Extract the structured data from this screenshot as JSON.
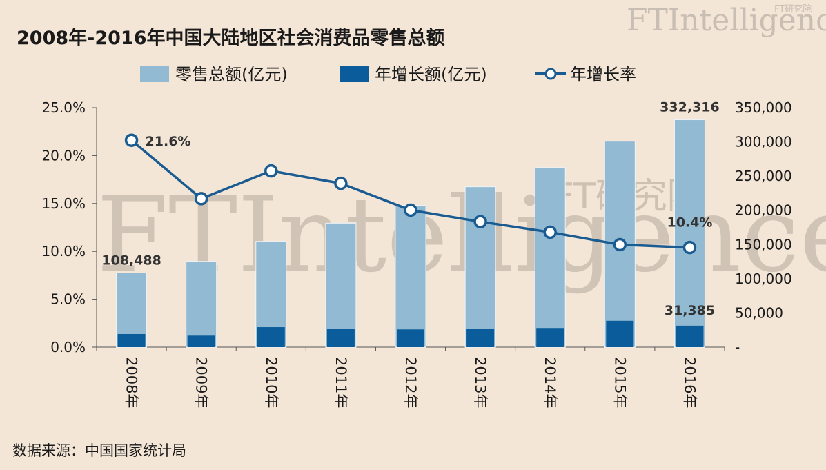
{
  "chart_data": {
    "type": "bar",
    "title": "2008年-2016年中国大陆地区社会消费品零售总额",
    "categories": [
      "2008年",
      "2009年",
      "2010年",
      "2011年",
      "2012年",
      "2013年",
      "2014年",
      "2015年",
      "2016年"
    ],
    "series": [
      {
        "name": "零售总额(亿元)",
        "type": "bar",
        "axis": "right",
        "color": "#92bad2",
        "values": [
          108488,
          125343,
          154554,
          181226,
          207167,
          234380,
          262394,
          300931,
          332316
        ]
      },
      {
        "name": "年增长额(亿元)",
        "type": "bar",
        "axis": "right",
        "color": "#0a5d9a",
        "values": [
          19178,
          16855,
          29211,
          26672,
          25941,
          27213,
          28014,
          38537,
          31385
        ]
      },
      {
        "name": "年增长率",
        "type": "line",
        "axis": "left",
        "color": "#1a5c91",
        "values": [
          21.6,
          15.5,
          18.4,
          17.1,
          14.3,
          13.1,
          12.0,
          10.7,
          10.4
        ]
      }
    ],
    "y_left": {
      "min": 0,
      "max": 25,
      "ticks": [
        "0.0%",
        "5.0%",
        "10.0%",
        "15.0%",
        "20.0%",
        "25.0%"
      ]
    },
    "y_right": {
      "min": 0,
      "max": 350000,
      "ticks": [
        "-",
        "50,000",
        "100,000",
        "150,000",
        "200,000",
        "250,000",
        "300,000",
        "350,000"
      ]
    },
    "data_labels": {
      "total_first": "108,488",
      "total_last": "332,316",
      "growth_last": "31,385",
      "rate_first": "21.6%",
      "rate_last": "10.4%"
    },
    "legend_position": "top"
  },
  "source": "数据来源：中国国家统计局",
  "watermark": {
    "big": "FTIntelligence",
    "cn": "FT研究院",
    "logo": "FTIntelligence",
    "logo_cn": "FT研究院"
  }
}
